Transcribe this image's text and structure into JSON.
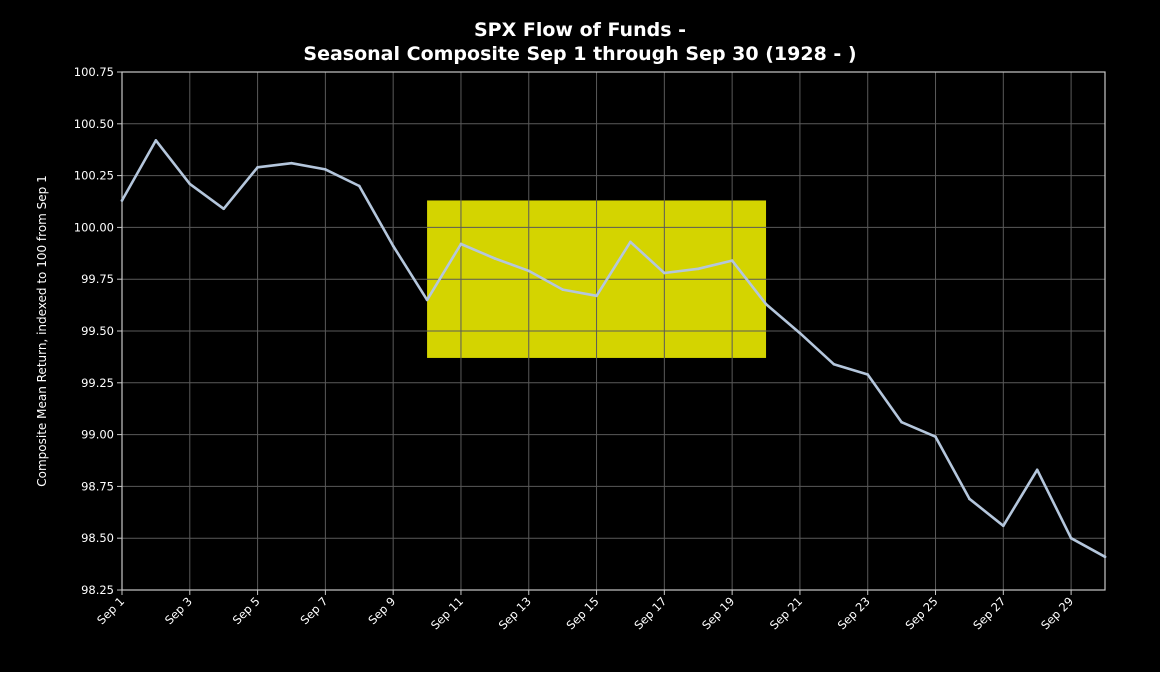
{
  "chart_data": {
    "type": "line",
    "title_line_1": "SPX Flow of Funds -",
    "title_line_2": "Seasonal Composite Sep 1 through Sep 30 (1928 - )",
    "xlabel": "",
    "ylabel": "Composite Mean Return, indexed to 100 from Sep 1",
    "x": [
      "Sep 1",
      "Sep 2",
      "Sep 3",
      "Sep 4",
      "Sep 5",
      "Sep 6",
      "Sep 7",
      "Sep 8",
      "Sep 9",
      "Sep 10",
      "Sep 11",
      "Sep 12",
      "Sep 13",
      "Sep 14",
      "Sep 15",
      "Sep 16",
      "Sep 17",
      "Sep 18",
      "Sep 19",
      "Sep 20",
      "Sep 21",
      "Sep 22",
      "Sep 23",
      "Sep 24",
      "Sep 25",
      "Sep 26",
      "Sep 27",
      "Sep 28",
      "Sep 29",
      "Sep 30"
    ],
    "x_tick_labels": [
      "Sep 1",
      "Sep 3",
      "Sep 5",
      "Sep 7",
      "Sep 9",
      "Sep 11",
      "Sep 13",
      "Sep 15",
      "Sep 17",
      "Sep 19",
      "Sep 21",
      "Sep 23",
      "Sep 25",
      "Sep 27",
      "Sep 29"
    ],
    "series": [
      {
        "values": [
          100.13,
          100.42,
          100.21,
          100.09,
          100.29,
          100.31,
          100.28,
          100.2,
          99.91,
          99.65,
          99.92,
          99.85,
          99.79,
          99.7,
          99.67,
          99.93,
          99.78,
          99.8,
          99.84,
          99.63,
          99.49,
          99.34,
          99.29,
          99.06,
          98.99,
          98.69,
          98.56,
          98.83,
          98.5,
          98.41
        ]
      }
    ],
    "y_ticks": [
      "98.25",
      "98.50",
      "98.75",
      "99.00",
      "99.25",
      "99.50",
      "99.75",
      "100.00",
      "100.25",
      "100.50",
      "100.75"
    ],
    "ylim": [
      98.25,
      100.75
    ],
    "grid": true,
    "highlight_region": {
      "x_start": "Sep 10",
      "x_end": "Sep 20",
      "y_low": 99.37,
      "y_high": 100.13
    },
    "colors": {
      "background": "#000000",
      "line": "#b4c6dc",
      "grid": "#5a5a5a",
      "axes": "#c8c8c8",
      "text": "#ffffff",
      "highlight": "#d4d400"
    }
  }
}
